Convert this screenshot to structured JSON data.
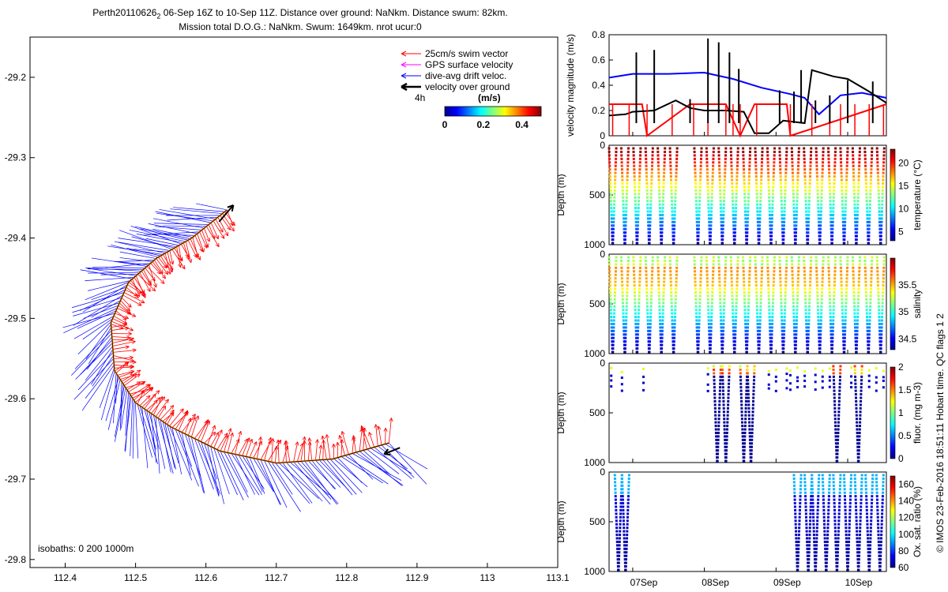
{
  "header": {
    "line1_prefix": "Perth20110626",
    "line1_sub": "2",
    "line1_rest": " 06-Sep 16Z to 10-Sep 11Z. Distance over ground: NaNkm. Distance swum: 82km.",
    "line2": "Mission total D.O.G.: NaNkm. Swum: 1649km. nrot ucur:0"
  },
  "colors": {
    "swim": "#ff0000",
    "gps": "#ff00ff",
    "drift": "#0000ff",
    "ground": "#000000",
    "track": "#ff8c00"
  },
  "chart_data": [
    {
      "type": "scatter",
      "name": "track-map",
      "xlim": [
        112.35,
        113.1
      ],
      "ylim": [
        -29.81,
        -29.15
      ],
      "xticks": [
        "112.4",
        "112.5",
        "112.6",
        "112.7",
        "112.8",
        "112.9",
        "113",
        "113.1"
      ],
      "yticks": [
        "-29.2",
        "-29.3",
        "-29.4",
        "-29.5",
        "-29.6",
        "-29.7",
        "-29.8"
      ],
      "track": {
        "x": [
          112.63,
          112.58,
          112.53,
          112.49,
          112.465,
          112.47,
          112.5,
          112.55,
          112.62,
          112.7,
          112.78,
          112.86
        ],
        "y": [
          -29.365,
          -29.4,
          -29.425,
          -29.455,
          -29.505,
          -29.565,
          -29.605,
          -29.635,
          -29.665,
          -29.68,
          -29.675,
          -29.655
        ]
      },
      "legend": {
        "swim": "25cm/s swim vector",
        "gps": "GPS surface velocity",
        "drift": "dive-avg drift veloc.",
        "ground": "velocity over ground",
        "ground_time": "4h"
      },
      "colorbar": {
        "label": "(m/s)",
        "ticks": [
          "0",
          "0.2",
          "0.4"
        ],
        "range": [
          0,
          0.5
        ]
      },
      "isobaths_label": "isobaths: 0   200  1000m"
    },
    {
      "type": "line",
      "name": "velocity-magnitude",
      "ylabel": "velocity magnitude (m/s)",
      "ylim": [
        0,
        0.8
      ],
      "yticks": [
        "0",
        "0.2",
        "0.4",
        "0.6",
        "0.8"
      ],
      "xlim": [
        6.67,
        10.54
      ],
      "series": [
        {
          "name": "drift",
          "color": "#0000ff",
          "x": [
            6.67,
            7.0,
            7.5,
            8.0,
            8.4,
            8.8,
            9.2,
            9.4,
            9.6,
            9.9,
            10.2,
            10.54
          ],
          "y": [
            0.46,
            0.49,
            0.49,
            0.5,
            0.45,
            0.38,
            0.33,
            0.3,
            0.17,
            0.32,
            0.34,
            0.3
          ]
        },
        {
          "name": "swim",
          "color": "#ff0000",
          "x": [
            6.67,
            7.13,
            7.2,
            7.8,
            8.3,
            8.5,
            8.7,
            9.15,
            9.2,
            10.54
          ],
          "y": [
            0.25,
            0.25,
            0.0,
            0.25,
            0.25,
            0.0,
            0.25,
            0.25,
            0.0,
            0.25
          ]
        },
        {
          "name": "ground",
          "color": "#000000",
          "x": [
            6.67,
            6.9,
            7.0,
            7.3,
            7.6,
            7.8,
            8.0,
            8.3,
            8.55,
            8.7,
            8.9,
            9.1,
            9.4,
            9.5,
            9.8,
            10.0,
            10.3,
            10.54
          ],
          "y": [
            0.16,
            0.17,
            0.19,
            0.2,
            0.28,
            0.22,
            0.2,
            0.2,
            0.19,
            0.02,
            0.02,
            0.12,
            0.1,
            0.52,
            0.47,
            0.45,
            0.35,
            0.26
          ]
        }
      ]
    },
    {
      "type": "scatter",
      "name": "temperature",
      "ylabel": "Depth (m)",
      "ylim": [
        1000,
        0
      ],
      "yticks": [
        "0",
        "500",
        "1000"
      ],
      "colorbar": {
        "label": "temperature (°C)",
        "ticks": [
          "5",
          "10",
          "15",
          "20"
        ],
        "range": [
          3,
          23
        ]
      }
    },
    {
      "type": "scatter",
      "name": "salinity",
      "ylabel": "Depth (m)",
      "ylim": [
        1000,
        0
      ],
      "yticks": [
        "0",
        "500",
        "1000"
      ],
      "colorbar": {
        "label": "salinity",
        "ticks": [
          "34.5",
          "35",
          "35.5"
        ],
        "range": [
          34.3,
          36.0
        ]
      }
    },
    {
      "type": "scatter",
      "name": "fluorescence",
      "ylabel": "Depth (m)",
      "ylim": [
        1000,
        0
      ],
      "yticks": [
        "0",
        "500",
        "1000"
      ],
      "colorbar": {
        "label": "fluor. (mg m-3)",
        "ticks": [
          "0",
          "0.5",
          "1",
          "1.5",
          "2"
        ],
        "range": [
          0,
          2
        ]
      }
    },
    {
      "type": "scatter",
      "name": "oxygen",
      "ylabel": "Depth (m)",
      "ylim": [
        1000,
        0
      ],
      "yticks": [
        "0",
        "500",
        "1000"
      ],
      "xticks": [
        "07Sep",
        "08Sep",
        "09Sep",
        "10Sep"
      ],
      "xtick_values": [
        7,
        8,
        9,
        10
      ],
      "colorbar": {
        "label": "Ox. sat. ratio (%)",
        "ticks": [
          "60",
          "80",
          "100",
          "120",
          "140",
          "160"
        ],
        "range": [
          60,
          170
        ]
      }
    }
  ],
  "side_note": "© IMOS 23-Feb-2016 18:51:11 Hobart time. QC flags 1  2"
}
